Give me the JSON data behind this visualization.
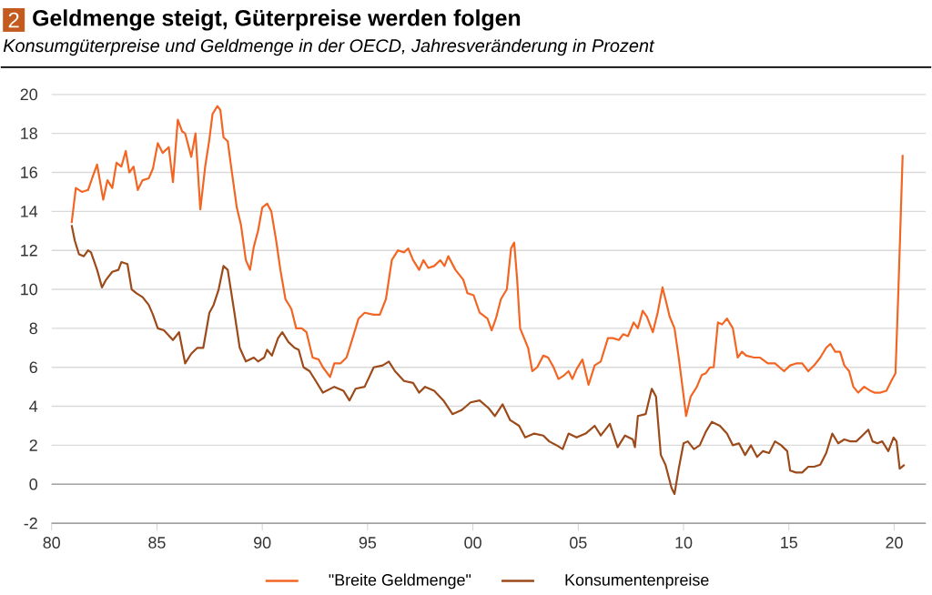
{
  "chart_data": {
    "type": "line",
    "title": "Geldmenge steigt, Güterpreise werden folgen",
    "subtitle": "Konsumgüterpreise und Geldmenge in der OECD, Jahresveränderung in Prozent",
    "annotations": [
      "2"
    ],
    "xlim": [
      1980,
      2021.5
    ],
    "ylim": [
      -2,
      20
    ],
    "xticks": [
      {
        "value": 1980,
        "label": "80"
      },
      {
        "value": 1985,
        "label": "85"
      },
      {
        "value": 1990,
        "label": "90"
      },
      {
        "value": 1995,
        "label": "95"
      },
      {
        "value": 2000,
        "label": "00"
      },
      {
        "value": 2005,
        "label": "05"
      },
      {
        "value": 2010,
        "label": "10"
      },
      {
        "value": 2015,
        "label": "15"
      },
      {
        "value": 2020,
        "label": "20"
      }
    ],
    "yticks": [
      -2,
      0,
      2,
      4,
      6,
      8,
      10,
      12,
      14,
      16,
      18,
      20
    ],
    "grid": "y",
    "legend": "bottom",
    "line_style": "solid",
    "marker": "none",
    "ref_lines": [
      {
        "axis": "y",
        "value": 0,
        "color": "#a6a6a6"
      }
    ],
    "series": [
      {
        "name": "\"Breite Geldmenge\"",
        "color": "#f26522",
        "x": [
          1980.95,
          1981.15,
          1981.44,
          1981.73,
          1982.02,
          1982.16,
          1982.45,
          1982.65,
          1982.88,
          1983.08,
          1983.31,
          1983.52,
          1983.69,
          1983.89,
          1984.09,
          1984.32,
          1984.61,
          1984.81,
          1985.04,
          1985.27,
          1985.56,
          1985.76,
          1985.99,
          1986.2,
          1986.34,
          1986.63,
          1986.83,
          1987.06,
          1987.29,
          1987.49,
          1987.64,
          1987.87,
          1988.01,
          1988.16,
          1988.36,
          1988.56,
          1988.79,
          1988.99,
          1989.22,
          1989.42,
          1989.6,
          1989.8,
          1990.0,
          1990.23,
          1990.43,
          1990.66,
          1990.86,
          1991.1,
          1991.38,
          1991.61,
          1991.87,
          1992.1,
          1992.39,
          1992.68,
          1992.88,
          1993.22,
          1993.42,
          1993.71,
          1994.0,
          1994.29,
          1994.57,
          1994.86,
          1995.29,
          1995.58,
          1995.87,
          1996.15,
          1996.44,
          1996.73,
          1996.93,
          1997.16,
          1997.45,
          1997.65,
          1997.88,
          1998.16,
          1998.45,
          1998.65,
          1998.83,
          1999.17,
          1999.54,
          1999.74,
          2000.03,
          2000.32,
          2000.69,
          2000.89,
          2001.09,
          2001.33,
          2001.61,
          2001.81,
          2001.96,
          2002.1,
          2002.24,
          2002.39,
          2002.62,
          2002.82,
          2003.05,
          2003.34,
          2003.57,
          2003.83,
          2004.06,
          2004.34,
          2004.54,
          2004.72,
          2004.92,
          2005.2,
          2005.49,
          2005.78,
          2006.07,
          2006.41,
          2006.64,
          2006.93,
          2007.13,
          2007.36,
          2007.63,
          2007.83,
          2008.06,
          2008.26,
          2008.54,
          2008.77,
          2009.0,
          2009.14,
          2009.34,
          2009.57,
          2009.77,
          2009.97,
          2010.12,
          2010.34,
          2010.63,
          2010.86,
          2011.06,
          2011.26,
          2011.43,
          2011.63,
          2011.83,
          2012.06,
          2012.34,
          2012.57,
          2012.77,
          2012.97,
          2013.34,
          2013.63,
          2014.0,
          2014.34,
          2014.77,
          2015.06,
          2015.34,
          2015.63,
          2015.92,
          2016.2,
          2016.49,
          2016.77,
          2016.97,
          2017.2,
          2017.43,
          2017.63,
          2017.86,
          2018.06,
          2018.29,
          2018.57,
          2018.86,
          2019.06,
          2019.34,
          2019.63,
          2019.86,
          2020.06,
          2020.2,
          2020.4
        ],
        "values": [
          13.4,
          15.2,
          15.0,
          15.1,
          16.0,
          16.4,
          14.6,
          15.6,
          15.2,
          16.5,
          16.3,
          17.1,
          16.0,
          16.3,
          15.1,
          15.6,
          15.7,
          16.2,
          17.5,
          17.0,
          17.3,
          15.5,
          18.7,
          18.1,
          18.0,
          16.8,
          18.0,
          14.1,
          16.3,
          17.7,
          19.0,
          19.4,
          19.2,
          17.8,
          17.6,
          16.0,
          14.2,
          13.3,
          11.5,
          11.0,
          12.2,
          13.0,
          14.2,
          14.4,
          14.0,
          12.5,
          11.0,
          9.5,
          9.0,
          8.0,
          8.0,
          7.8,
          6.5,
          6.4,
          6.0,
          5.5,
          6.2,
          6.2,
          6.5,
          7.5,
          8.5,
          8.8,
          8.7,
          8.7,
          9.5,
          11.5,
          12.0,
          11.9,
          12.1,
          11.5,
          11.0,
          11.5,
          11.1,
          11.2,
          11.5,
          11.2,
          11.7,
          11.0,
          10.5,
          9.8,
          9.7,
          8.8,
          8.5,
          7.9,
          8.5,
          9.5,
          10.0,
          12.1,
          12.4,
          10.5,
          8.0,
          7.6,
          7.0,
          5.8,
          6.0,
          6.6,
          6.5,
          6.0,
          5.4,
          5.6,
          5.8,
          5.4,
          5.9,
          6.4,
          5.1,
          6.1,
          6.3,
          7.5,
          7.5,
          7.4,
          7.7,
          7.6,
          8.3,
          8.0,
          8.9,
          8.6,
          7.8,
          8.8,
          10.1,
          9.5,
          8.6,
          8.0,
          6.5,
          4.8,
          3.5,
          4.5,
          5.0,
          5.6,
          5.7,
          6.0,
          6.0,
          8.3,
          8.2,
          8.5,
          8.0,
          6.5,
          6.8,
          6.6,
          6.5,
          6.5,
          6.2,
          6.2,
          5.8,
          6.1,
          6.2,
          6.2,
          5.8,
          6.1,
          6.5,
          7.0,
          7.2,
          6.8,
          6.8,
          6.1,
          5.8,
          5.0,
          4.7,
          5.0,
          4.8,
          4.7,
          4.7,
          4.8,
          5.3,
          5.7,
          10.0,
          16.9
        ]
      },
      {
        "name": "Konsumentenpreise",
        "color": "#9c4a1a",
        "x": [
          1980.95,
          1981.1,
          1981.3,
          1981.53,
          1981.73,
          1981.87,
          1982.16,
          1982.39,
          1982.59,
          1982.88,
          1983.17,
          1983.31,
          1983.6,
          1983.8,
          1984.03,
          1984.32,
          1984.61,
          1984.81,
          1985.04,
          1985.33,
          1985.76,
          1986.05,
          1986.34,
          1986.63,
          1986.92,
          1987.2,
          1987.49,
          1987.69,
          1987.93,
          1988.16,
          1988.36,
          1988.65,
          1988.93,
          1989.22,
          1989.6,
          1989.8,
          1990.09,
          1990.23,
          1990.46,
          1990.75,
          1990.95,
          1991.24,
          1991.53,
          1991.73,
          1991.96,
          1992.25,
          1992.54,
          1992.88,
          1993.42,
          1993.85,
          1994.14,
          1994.43,
          1994.86,
          1995.29,
          1995.72,
          1996.01,
          1996.3,
          1996.73,
          1997.16,
          1997.45,
          1997.73,
          1998.16,
          1998.6,
          1999.03,
          1999.46,
          1999.89,
          2000.32,
          2000.75,
          2001.04,
          2001.41,
          2001.76,
          2002.19,
          2002.48,
          2002.91,
          2003.34,
          2003.62,
          2003.97,
          2004.26,
          2004.54,
          2004.92,
          2005.35,
          2005.78,
          2006.07,
          2006.5,
          2006.87,
          2007.22,
          2007.59,
          2007.69,
          2007.83,
          2008.2,
          2008.49,
          2008.69,
          2008.92,
          2009.14,
          2009.43,
          2009.57,
          2009.77,
          2010.0,
          2010.2,
          2010.49,
          2010.77,
          2011.06,
          2011.34,
          2011.72,
          2012.06,
          2012.34,
          2012.63,
          2012.92,
          2013.2,
          2013.49,
          2013.77,
          2014.06,
          2014.34,
          2014.63,
          2014.92,
          2015.06,
          2015.34,
          2015.63,
          2015.92,
          2016.2,
          2016.49,
          2016.77,
          2017.06,
          2017.34,
          2017.63,
          2017.92,
          2018.2,
          2018.49,
          2018.77,
          2018.97,
          2019.2,
          2019.43,
          2019.72,
          2019.97,
          2020.11,
          2020.26,
          2020.49
        ],
        "values": [
          13.3,
          12.5,
          11.8,
          11.7,
          12.0,
          11.9,
          11.0,
          10.1,
          10.5,
          10.9,
          11.0,
          11.4,
          11.3,
          10.0,
          9.8,
          9.6,
          9.2,
          8.7,
          8.0,
          7.9,
          7.4,
          7.8,
          6.2,
          6.7,
          7.0,
          7.0,
          8.8,
          9.2,
          10.0,
          11.2,
          11.0,
          9.0,
          7.0,
          6.3,
          6.5,
          6.3,
          6.5,
          6.9,
          6.6,
          7.5,
          7.8,
          7.3,
          7.0,
          6.9,
          6.0,
          5.8,
          5.3,
          4.7,
          5.0,
          4.8,
          4.3,
          4.9,
          5.0,
          6.0,
          6.1,
          6.3,
          5.8,
          5.3,
          5.2,
          4.7,
          5.0,
          4.8,
          4.3,
          3.6,
          3.8,
          4.2,
          4.3,
          3.9,
          3.5,
          4.1,
          3.3,
          3.0,
          2.4,
          2.6,
          2.5,
          2.2,
          2.0,
          1.8,
          2.6,
          2.4,
          2.6,
          3.0,
          2.5,
          3.1,
          1.9,
          2.5,
          2.3,
          1.9,
          3.5,
          3.6,
          4.9,
          4.5,
          1.5,
          1.0,
          -0.2,
          -0.5,
          0.8,
          2.1,
          2.2,
          1.8,
          2.0,
          2.7,
          3.2,
          3.0,
          2.6,
          2.0,
          2.1,
          1.5,
          2.0,
          1.4,
          1.7,
          1.6,
          2.2,
          2.0,
          1.7,
          0.7,
          0.6,
          0.6,
          0.9,
          0.9,
          1.0,
          1.6,
          2.6,
          2.1,
          2.3,
          2.2,
          2.2,
          2.5,
          2.8,
          2.2,
          2.1,
          2.2,
          1.7,
          2.4,
          2.2,
          0.8,
          1.0
        ]
      }
    ]
  }
}
